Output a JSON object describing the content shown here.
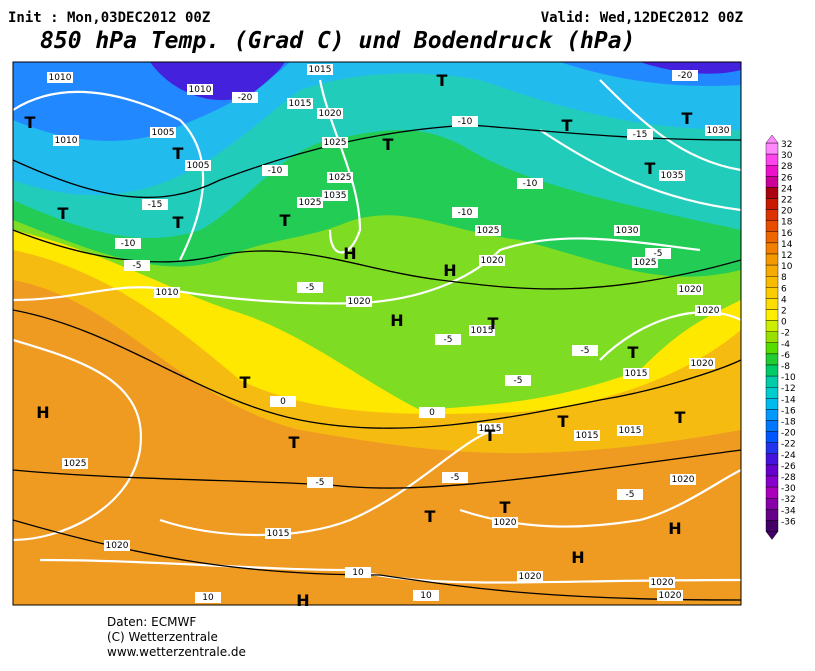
{
  "header": {
    "init": "Init : Mon,03DEC2012 00Z",
    "valid": "Valid: Wed,12DEC2012 00Z",
    "title": "850 hPa Temp. (Grad C) und Bodendruck (hPa)"
  },
  "colorbar": {
    "ticks": [
      32,
      30,
      28,
      26,
      24,
      22,
      20,
      18,
      16,
      14,
      12,
      10,
      8,
      6,
      4,
      2,
      0,
      -2,
      -4,
      -6,
      -8,
      -10,
      -12,
      -14,
      -16,
      -18,
      -20,
      -22,
      -24,
      -26,
      -28,
      -30,
      -32,
      -34,
      -36
    ],
    "colors": [
      "#ff88ff",
      "#ff44ee",
      "#ee11cc",
      "#cc0099",
      "#aa0011",
      "#c81a00",
      "#dc3300",
      "#e64d00",
      "#ee6600",
      "#f27f00",
      "#f59900",
      "#f7aa00",
      "#f9bb00",
      "#fbcc00",
      "#fddd00",
      "#ffee00",
      "#ccee00",
      "#99e000",
      "#55dd00",
      "#22cc33",
      "#00cc66",
      "#00ccaa",
      "#00cccc",
      "#00bbee",
      "#0099ff",
      "#0077ff",
      "#0055ff",
      "#2233ee",
      "#4411dd",
      "#6600cc",
      "#8800cc",
      "#aa00bb",
      "#8800aa",
      "#660088",
      "#440066"
    ]
  },
  "map_labels": [
    "1010",
    "1010",
    "1005",
    "1010",
    "1005",
    "1015",
    "1015",
    "1020",
    "1025",
    "1025",
    "1025",
    "1035",
    "-20",
    "-20",
    "-15",
    "-15",
    "-10",
    "-10",
    "-10",
    "-10",
    "-10",
    "-5",
    "-5",
    "-5",
    "-5",
    "-5",
    "-5",
    "-5",
    "-5",
    "-5",
    "0",
    "0",
    "1010",
    "1020",
    "1015",
    "1025",
    "1020",
    "1030",
    "1025",
    "1030",
    "1035",
    "1020",
    "1020",
    "1015",
    "1020",
    "1015",
    "1015",
    "1015",
    "1025",
    "1015",
    "1020",
    "1020",
    "1020",
    "1020",
    "1020",
    "1020",
    "10",
    "10",
    "10"
  ],
  "pressure_centers": [
    "H",
    "H",
    "H",
    "H",
    "H",
    "H",
    "H",
    "T",
    "T",
    "T",
    "T",
    "T",
    "T",
    "T",
    "T",
    "T",
    "T",
    "T",
    "T",
    "T",
    "T",
    "T",
    "T",
    "T",
    "T",
    "T"
  ],
  "footer": [
    "Daten: ECMWF",
    "(C) Wetterzentrale",
    "www.wetterzentrale.de"
  ]
}
